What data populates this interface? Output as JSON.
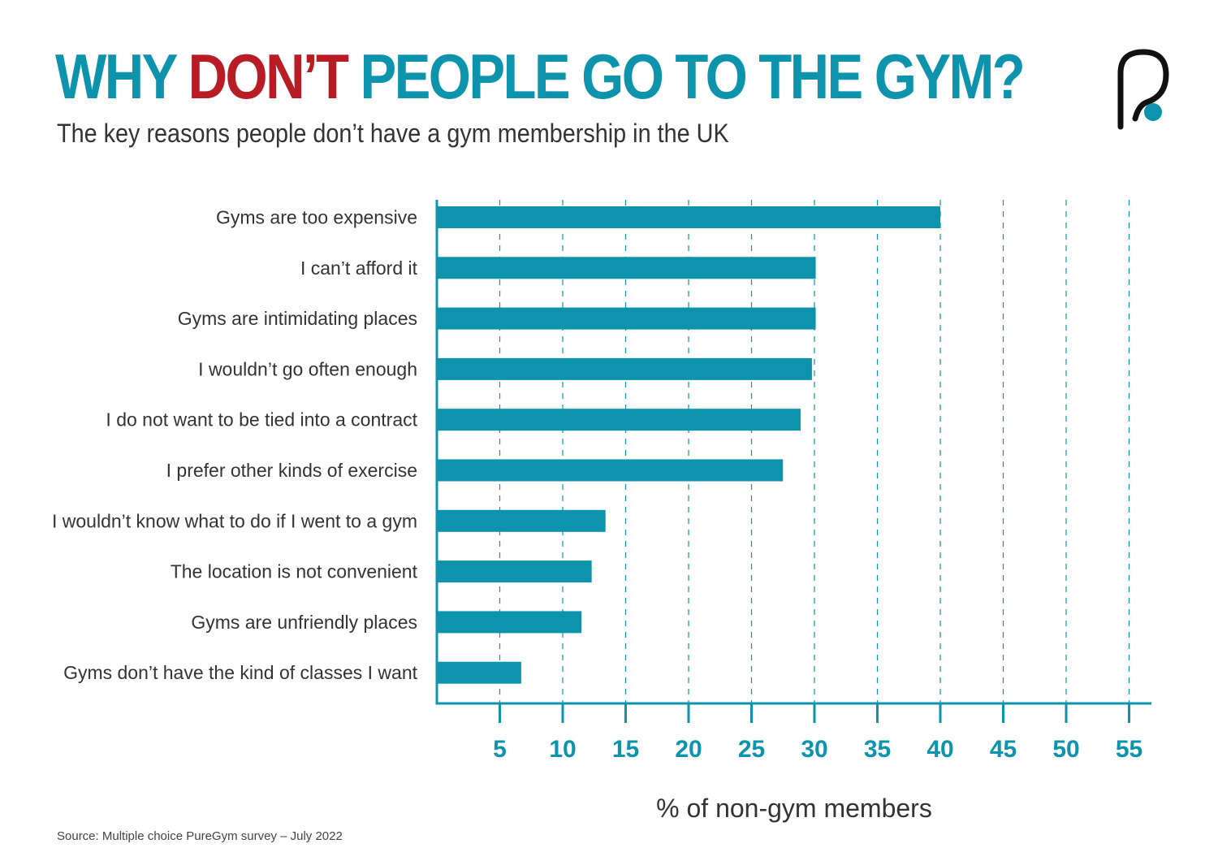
{
  "header": {
    "title_part1": "WHY ",
    "title_highlight": "DON’T",
    "title_part2": " PEOPLE GO TO THE GYM?",
    "subtitle": "The key reasons people don’t have a gym membership in the UK"
  },
  "logo": {
    "icon": "puregym-p-logo"
  },
  "colors": {
    "accent": "#0d93ac",
    "highlight": "#b81d25",
    "text": "#333333"
  },
  "chart_data": {
    "type": "bar",
    "orientation": "horizontal",
    "categories": [
      "Gyms are too expensive",
      "I can’t afford it",
      "Gyms are intimidating places",
      "I wouldn’t go often enough",
      "I do not want to be tied into a contract",
      "I prefer other kinds of exercise",
      "I wouldn’t know what to do if I went to a gym",
      "The location is not convenient",
      "Gyms are unfriendly places",
      "Gyms don’t have the kind of classes I want"
    ],
    "values": [
      40,
      30.1,
      30.1,
      29.8,
      28.9,
      27.5,
      13.4,
      12.3,
      11.5,
      6.7
    ],
    "xlabel": "% of non-gym members",
    "ylabel": "",
    "xlim": [
      0,
      57
    ],
    "ticks": [
      5,
      10,
      15,
      20,
      25,
      30,
      35,
      40,
      45,
      50,
      55
    ],
    "grid": true,
    "gridStyle": "dashed vertical"
  },
  "footer": {
    "source": "Source: Multiple choice PureGym survey – July 2022"
  }
}
